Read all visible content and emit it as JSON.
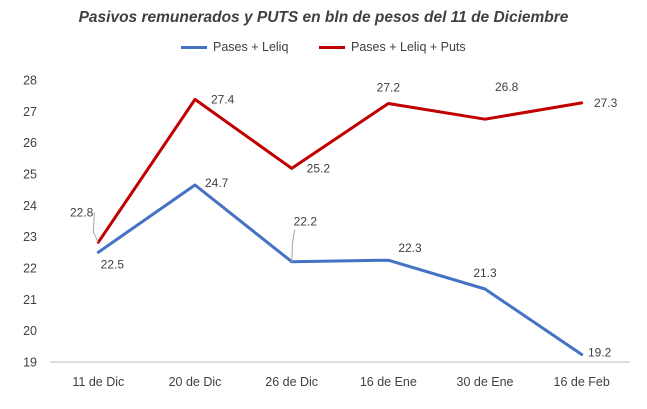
{
  "chart_data": {
    "type": "line",
    "title": "Pasivos remunerados y PUTS en bln de pesos del 11 de Diciembre",
    "xlabel": "",
    "ylabel": "",
    "categories": [
      "11 de Dic",
      "20 de Dic",
      "26 de Dic",
      "16 de Ene",
      "30 de Ene",
      "16 de Feb"
    ],
    "ylim": [
      19,
      28
    ],
    "yticks": [
      19,
      20,
      21,
      22,
      23,
      24,
      25,
      26,
      27,
      28
    ],
    "grid": false,
    "legend_position": "top-center",
    "series": [
      {
        "name": "Pases + Leliq",
        "color": "#4472C4",
        "values": [
          22.5,
          24.65,
          22.2,
          22.25,
          21.33,
          19.24
        ],
        "labels": [
          "22.5",
          "24.7",
          "22.2",
          "22.3",
          "21.3",
          "19.2"
        ]
      },
      {
        "name": "Pases + Leliq + Puts",
        "color": "#C00000",
        "values": [
          22.82,
          27.38,
          25.18,
          27.25,
          26.75,
          27.27
        ],
        "labels": [
          "22.8",
          "27.4",
          "25.2",
          "27.2",
          "26.8",
          "27.3"
        ]
      }
    ]
  }
}
